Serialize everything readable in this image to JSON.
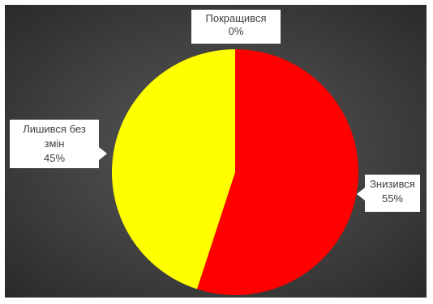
{
  "chart_data": {
    "type": "pie",
    "categories": [
      "Знизився",
      "Лишився без змін",
      "Покращився"
    ],
    "values": [
      55,
      45,
      0
    ],
    "value_labels": [
      "55%",
      "45%",
      "0%"
    ],
    "colors": [
      "#ff0000",
      "#ffff00",
      "#4472c4"
    ],
    "legend": "none",
    "background": "#404040"
  }
}
